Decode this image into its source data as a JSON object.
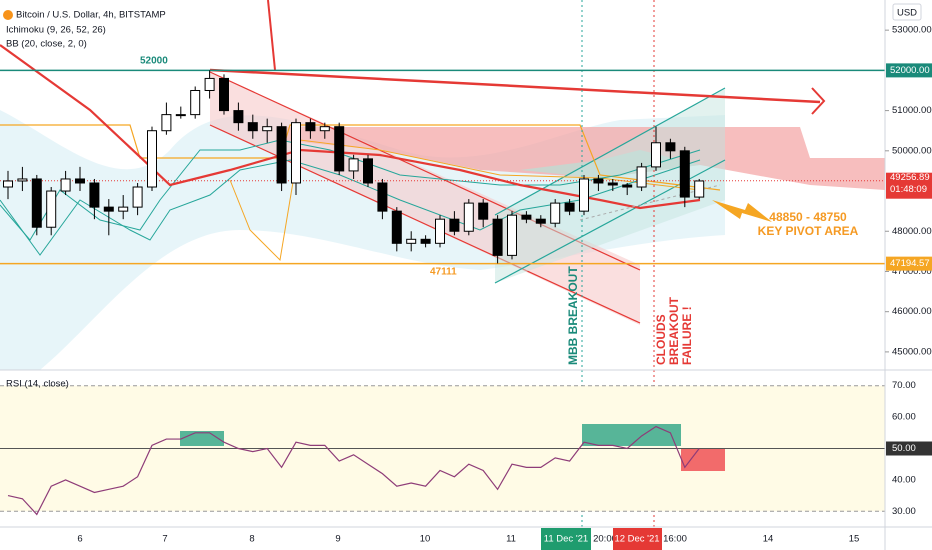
{
  "chart_data": {
    "type": "candlestick",
    "title": "Bitcoin / U.S. Dollar, 4h, BITSTAMP",
    "indicators": [
      "Ichimoku (9, 26, 52, 26)",
      "BB (20, close, 2, 0)"
    ],
    "currency": "USD",
    "candles": [
      [
        49100,
        49500,
        48800,
        49250
      ],
      [
        49250,
        49600,
        49000,
        49300
      ],
      [
        49300,
        49400,
        47900,
        48100
      ],
      [
        48100,
        49100,
        47900,
        49000
      ],
      [
        49000,
        49500,
        48900,
        49300
      ],
      [
        49300,
        49600,
        49000,
        49200
      ],
      [
        49200,
        49300,
        48300,
        48600
      ],
      [
        48600,
        48800,
        47900,
        48500
      ],
      [
        48500,
        48900,
        48300,
        48600
      ],
      [
        48600,
        49200,
        48400,
        49100
      ],
      [
        49100,
        50600,
        49000,
        50500
      ],
      [
        50500,
        51200,
        50400,
        50900
      ],
      [
        50900,
        51100,
        50800,
        50900
      ],
      [
        50900,
        51600,
        50800,
        51500
      ],
      [
        51500,
        52000,
        51300,
        51800
      ],
      [
        51800,
        51900,
        50900,
        51000
      ],
      [
        51000,
        51200,
        50500,
        50700
      ],
      [
        50700,
        50900,
        50300,
        50500
      ],
      [
        50500,
        50800,
        50200,
        50600
      ],
      [
        50600,
        50700,
        49000,
        49200
      ],
      [
        49200,
        50800,
        48900,
        50700
      ],
      [
        50700,
        50800,
        50300,
        50500
      ],
      [
        50500,
        50700,
        50300,
        50600
      ],
      [
        50600,
        50700,
        49400,
        49500
      ],
      [
        49500,
        49900,
        49300,
        49800
      ],
      [
        49800,
        49900,
        49100,
        49200
      ],
      [
        49200,
        49300,
        48300,
        48500
      ],
      [
        48500,
        48600,
        47500,
        47700
      ],
      [
        47700,
        48000,
        47500,
        47800
      ],
      [
        47800,
        47900,
        47600,
        47700
      ],
      [
        47700,
        48400,
        47600,
        48300
      ],
      [
        48300,
        48500,
        47900,
        48000
      ],
      [
        48000,
        48800,
        47900,
        48700
      ],
      [
        48700,
        48800,
        48100,
        48300
      ],
      [
        48300,
        48400,
        47200,
        47400
      ],
      [
        47400,
        48500,
        47300,
        48400
      ],
      [
        48400,
        48500,
        48200,
        48300
      ],
      [
        48300,
        48400,
        48100,
        48200
      ],
      [
        48200,
        48800,
        48100,
        48700
      ],
      [
        48700,
        48800,
        48400,
        48500
      ],
      [
        48500,
        49400,
        48400,
        49300
      ],
      [
        49300,
        49400,
        49000,
        49200
      ],
      [
        49200,
        49300,
        49000,
        49150
      ],
      [
        49150,
        49200,
        48900,
        49100
      ],
      [
        49100,
        49700,
        49000,
        49600
      ],
      [
        49600,
        50600,
        49500,
        50200
      ],
      [
        50200,
        50300,
        49800,
        50000
      ],
      [
        50000,
        50100,
        48600,
        48850
      ],
      [
        48850,
        49300,
        48800,
        49250
      ]
    ],
    "ylim": [
      44550,
      53750
    ],
    "yticks": [
      {
        "value": 53000,
        "label": "53000.00"
      },
      {
        "value": 51000,
        "label": "51000.00"
      },
      {
        "value": 50000,
        "label": "50000.00"
      },
      {
        "value": 48000,
        "label": "48000.00"
      },
      {
        "value": 47000,
        "label": "47000.00"
      },
      {
        "value": 46000,
        "label": "46000.00"
      },
      {
        "value": 45000,
        "label": "45000.00"
      }
    ],
    "price_tags": [
      {
        "value": 52000,
        "label": "52000.00"
      },
      49256.89,
      47194.57
    ],
    "countdown": "01:48:09",
    "annotations": [
      52000,
      47111,
      "48850 - 48750",
      "KEY PIVOT AREA",
      "MBB BREAKOUT",
      "CLOUDS",
      "BREAKOUT",
      "FAILURE !"
    ],
    "x_labels": [
      "6",
      "7",
      "8",
      "9",
      "10",
      "11",
      "11 Dec '21",
      "20:00",
      "12 Dec '21",
      "16:00",
      "14",
      "15"
    ],
    "rsi": {
      "label": "RSI (14, close)",
      "values": [
        35,
        34,
        29,
        38,
        40,
        38,
        36,
        37,
        38,
        41,
        51,
        53,
        53,
        55,
        55,
        52,
        50,
        49,
        50,
        44,
        52,
        51,
        51,
        46,
        48,
        45,
        42,
        38,
        39,
        38,
        43,
        41,
        45,
        43,
        37,
        45,
        44,
        44,
        47,
        46,
        52,
        51,
        51,
        50,
        54,
        57,
        55,
        44,
        50
      ],
      "color": "#8e3c78",
      "ylim": [
        25,
        75
      ],
      "yticks": [
        {
          "value": 70,
          "label": "70.00"
        },
        {
          "value": 60,
          "label": "60.00"
        },
        {
          "value": 50,
          "label": "50.00"
        },
        {
          "value": 40,
          "label": "40.00"
        },
        {
          "value": 30,
          "label": "30.00"
        }
      ]
    }
  }
}
